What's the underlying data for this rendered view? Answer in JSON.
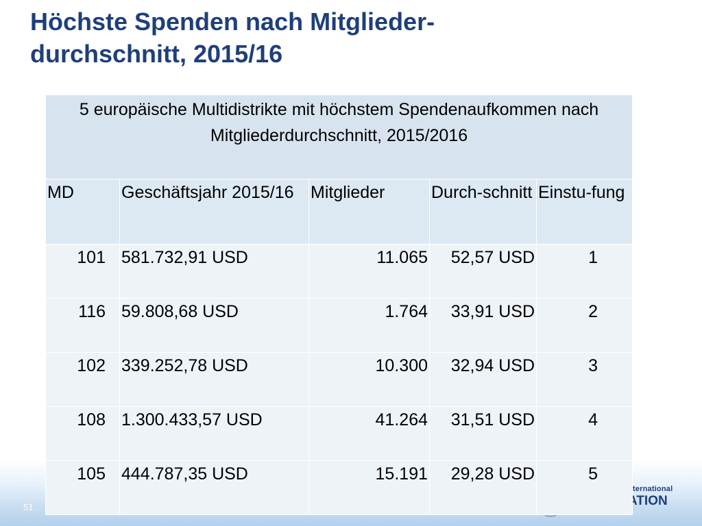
{
  "title": {
    "line1": "Höchste Spenden nach Mitglieder-",
    "line2": "durchschnitt, 2015/16"
  },
  "table": {
    "caption": "5 europäische Multidistrikte mit höchstem Spendenaufkommen nach Mitgliederdurchschnitt, 2015/2016",
    "headers": {
      "md": "MD",
      "year": " Geschäftsjahr 2015/16",
      "members": "Mitglieder",
      "average": "Durch-schnitt",
      "rank": "Einstu-fung"
    },
    "rows": [
      {
        "md": "101",
        "donation": "581.732,91 USD",
        "members": "11.065",
        "average": "52,57 USD",
        "rank": "1"
      },
      {
        "md": "116",
        "donation": "59.808,68 USD",
        "members": "1.764",
        "average": "33,91 USD",
        "rank": "2"
      },
      {
        "md": "102",
        "donation": "339.252,78 USD",
        "members": "10.300",
        "average": "32,94 USD",
        "rank": "3"
      },
      {
        "md": "108",
        "donation": "1.300.433,57 USD",
        "members": "41.264",
        "average": "31,51 USD",
        "rank": "4"
      },
      {
        "md": "105",
        "donation": "444.787,35 USD",
        "members": "15.191",
        "average": "29,28 USD",
        "rank": "5"
      }
    ]
  },
  "footer": {
    "page_number": "51",
    "brand_line1": "nternational",
    "brand_line2": "ATION"
  }
}
